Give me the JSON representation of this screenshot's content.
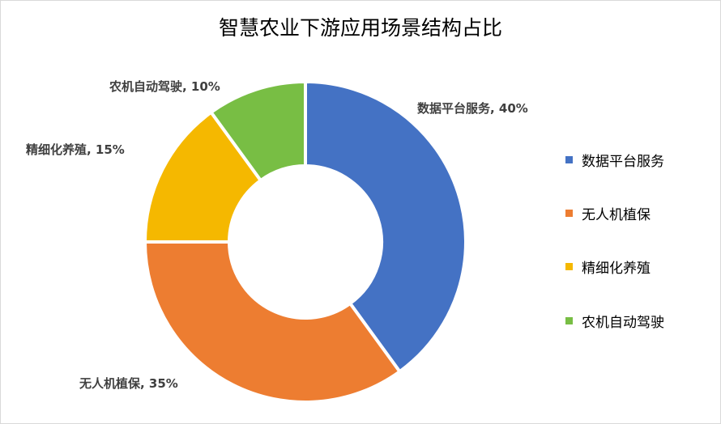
{
  "chart_data": {
    "type": "pie",
    "style": "donut",
    "title": "智慧农业下游应用场景结构占比",
    "categories": [
      "数据平台服务",
      "无人机植保",
      "精细化养殖",
      "农机自动驾驶"
    ],
    "values": [
      40,
      35,
      15,
      10
    ],
    "unit": "%",
    "colors": [
      "#4472C4",
      "#ED7D31",
      "#F5B800",
      "#78BE44"
    ],
    "data_labels": [
      "数据平台服务, 40%",
      "无人机植保, 35%",
      "精细化养殖, 15%",
      "农机自动驾驶, 10%"
    ],
    "legend_placement": "right"
  }
}
